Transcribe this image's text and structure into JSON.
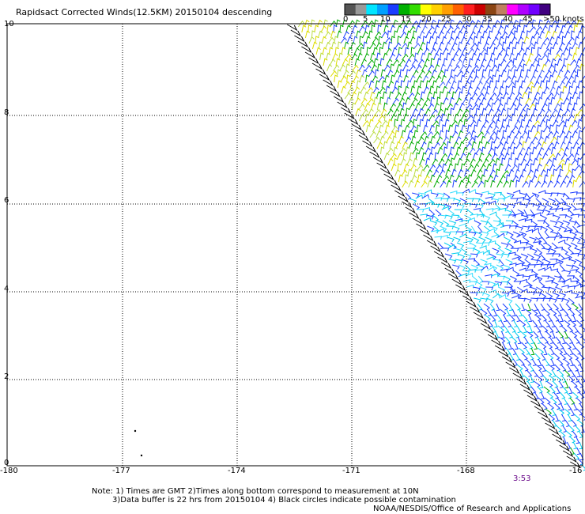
{
  "title": "Rapidsact Corrected Winds(12.5KM) 20150104 descending",
  "color_scale": {
    "labels": [
      "0",
      "5",
      "10",
      "15",
      "20",
      "25",
      "30",
      "35",
      "40",
      "45",
      ">50 knots"
    ],
    "colors": [
      "#555555",
      "#999999",
      "#00e5ff",
      "#00a0ff",
      "#1a3cff",
      "#00b000",
      "#33dd00",
      "#ffff00",
      "#ffd000",
      "#ffa000",
      "#ff6000",
      "#ff2020",
      "#cc0000",
      "#8b4513",
      "#c08060",
      "#ff00ff",
      "#b000ff",
      "#7000ff",
      "#400080"
    ]
  },
  "y_ticks": [
    "10",
    "8",
    "6",
    "4",
    "2",
    "0"
  ],
  "x_ticks": [
    "-180",
    "-177",
    "-174",
    "-171",
    "-168",
    "-16"
  ],
  "timestamp": "3:53",
  "notes": [
    "Note: 1) Times are GMT 2)Times along bottom correspond to measurement at 10N",
    "3)Data buffer is 22 hrs from 20150104 4) Black circles indicate possible contamination",
    "NOAA/NESDIS/Office of Research and Applications"
  ],
  "palette": {
    "cyan": "#00ccee",
    "blue": "#1a3cff",
    "green": "#00aa00",
    "yellow": "#dddd00",
    "black": "#000000"
  }
}
